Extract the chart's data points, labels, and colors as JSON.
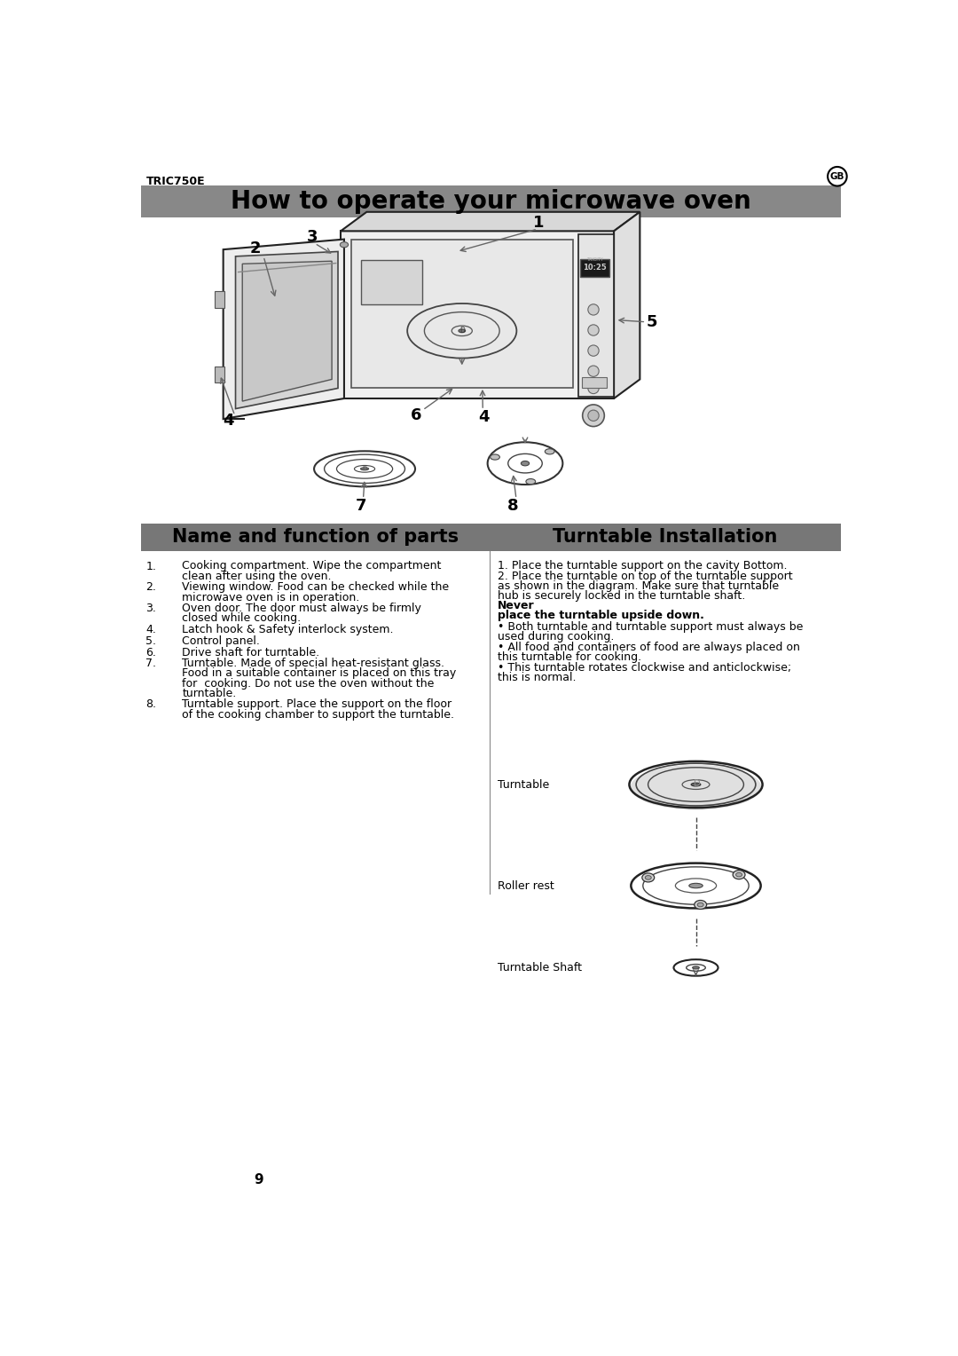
{
  "title": "How to operate your microwave oven",
  "header_bg": "#888888",
  "model_label": "TRIC750E",
  "gb_label": "GB",
  "section1_title": "Name and function of parts",
  "section2_title": "Turntable Installation",
  "section_title_bg": "#777777",
  "section_title_fontsize": 15,
  "name_function_items": [
    {
      "num": "1.",
      "text": "Cooking compartment. Wipe the compartment\nclean after using the oven."
    },
    {
      "num": "2.",
      "text": "Viewing window. Food can be checked while the\nmicrowave oven is in operation."
    },
    {
      "num": "3.",
      "text": "Oven door. The door must always be firmly\nclosed while cooking."
    },
    {
      "num": "4.",
      "text": "Latch hook & Safety interlock system."
    },
    {
      "num": "5.",
      "text": "Control panel."
    },
    {
      "num": "6.",
      "text": "Drive shaft for turntable."
    },
    {
      "num": "7.",
      "text": "Turntable. Made of special heat-resistant glass.\nFood in a suitable container is placed on this tray\nfor  cooking. Do not use the oven without the\nturntable."
    },
    {
      "num": "8.",
      "text": "Turntable support. Place the support on the floor\nof the cooking chamber to support the turntable."
    }
  ],
  "ti_para1": "1. Place the turntable support on the cavity Bottom.",
  "ti_para2": "2. Place the turntable on top of the turntable support\nas shown in the diagram. Make sure that turntable\nhub is securely locked in the turntable shaft.",
  "ti_bold1": "Never",
  "ti_bold2": "place the turntable upside down.",
  "ti_bullets": [
    "• Both turntable and turntable support must always be\nused during cooking.",
    "• All food and containers of food are always placed on\nthis turntable for cooking.",
    "• This turntable rotates clockwise and anticlockwise;\nthis is normal."
  ],
  "turntable_label": "Turntable",
  "roller_rest_label": "Roller rest",
  "turntable_shaft_label": "Turntable Shaft",
  "page_number": "9",
  "bg_color": "#ffffff",
  "text_color": "#000000",
  "body_fontsize": 9.0,
  "label_fontsize": 13
}
